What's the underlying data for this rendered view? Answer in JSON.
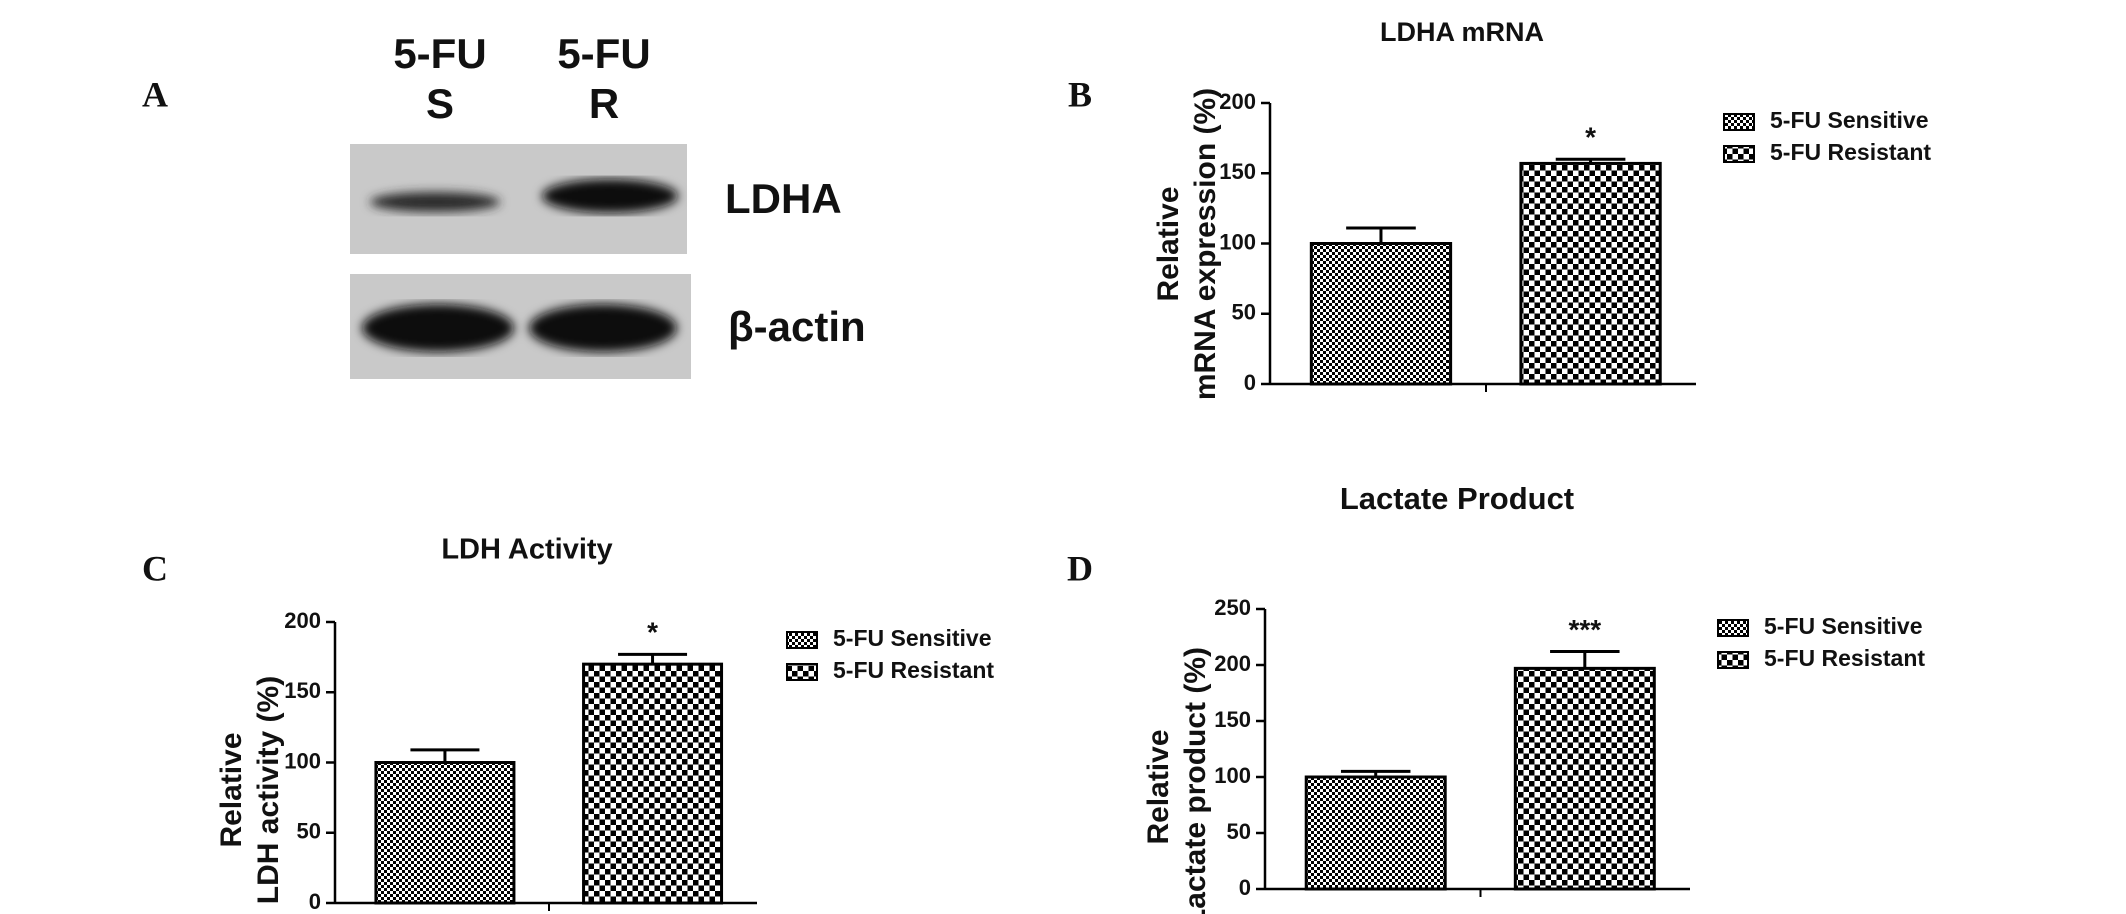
{
  "panel_a": {
    "label": "A",
    "lanes": [
      {
        "line1": "5-FU",
        "line2": "S"
      },
      {
        "line1": "5-FU",
        "line2": "R"
      }
    ],
    "bands": [
      "LDHA",
      "β-actin"
    ]
  },
  "chart_data": [
    {
      "type": "bar",
      "panel_label": "B",
      "title": "LDHA mRNA",
      "ylabel": [
        "Relative",
        "mRNA expression (%)"
      ],
      "ylim": [
        0,
        200
      ],
      "yticks": [
        0,
        50,
        100,
        150,
        200
      ],
      "series": [
        {
          "name": "5-FU Sensitive",
          "color": "#000000",
          "values": [
            100
          ],
          "errors": [
            11
          ]
        },
        {
          "name": "5-FU Resistant",
          "color": "#000000",
          "values": [
            157
          ],
          "errors": [
            3
          ],
          "annotation": "*"
        }
      ]
    },
    {
      "type": "bar",
      "panel_label": "C",
      "title": "LDH Activity",
      "ylabel": [
        "Relative",
        "LDH activity (%)"
      ],
      "ylim": [
        0,
        200
      ],
      "yticks": [
        0,
        50,
        100,
        150,
        200
      ],
      "series": [
        {
          "name": "5-FU Sensitive",
          "color": "#000000",
          "values": [
            100
          ],
          "errors": [
            9
          ]
        },
        {
          "name": "5-FU Resistant",
          "color": "#000000",
          "values": [
            170
          ],
          "errors": [
            7
          ],
          "annotation": "*"
        }
      ]
    },
    {
      "type": "bar",
      "panel_label": "D",
      "title": "Lactate Product",
      "ylabel": [
        "Relative",
        "Lactate product (%)"
      ],
      "ylim": [
        0,
        250
      ],
      "yticks": [
        0,
        50,
        100,
        150,
        200,
        250
      ],
      "series": [
        {
          "name": "5-FU Sensitive",
          "color": "#000000",
          "values": [
            100
          ],
          "errors": [
            5
          ]
        },
        {
          "name": "5-FU Resistant",
          "color": "#000000",
          "values": [
            197
          ],
          "errors": [
            15
          ],
          "annotation": "***"
        }
      ]
    }
  ]
}
